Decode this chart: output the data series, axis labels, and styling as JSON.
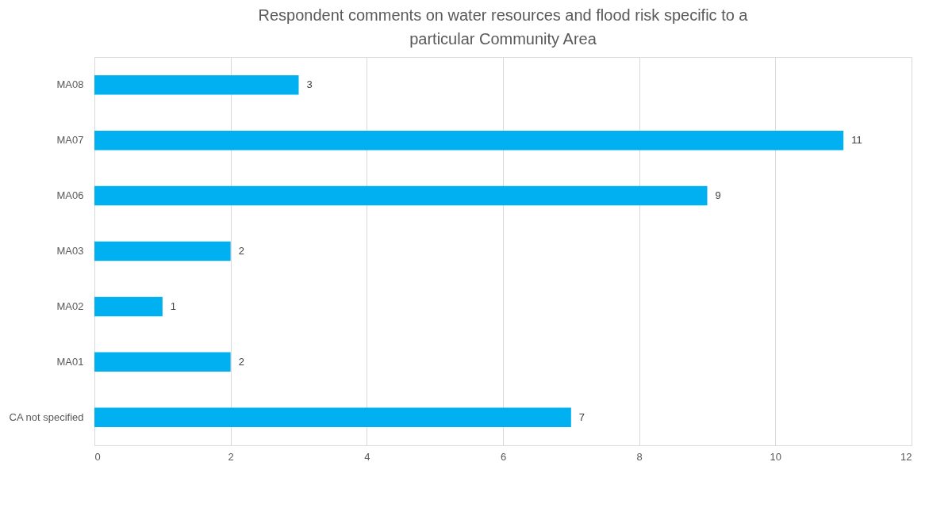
{
  "chart_data": {
    "type": "bar",
    "orientation": "horizontal",
    "title": "Respondent comments on water resources and flood risk specific to a particular Community Area",
    "categories": [
      "MA08",
      "MA07",
      "MA06",
      "MA03",
      "MA02",
      "MA01",
      "CA not specified"
    ],
    "values": [
      3,
      11,
      9,
      2,
      1,
      2,
      7
    ],
    "color": "#00b0f0",
    "xlim": [
      0,
      12
    ],
    "xticks": [
      0,
      2,
      4,
      6,
      8,
      10,
      12
    ],
    "grid": "x",
    "data_labels": true
  }
}
